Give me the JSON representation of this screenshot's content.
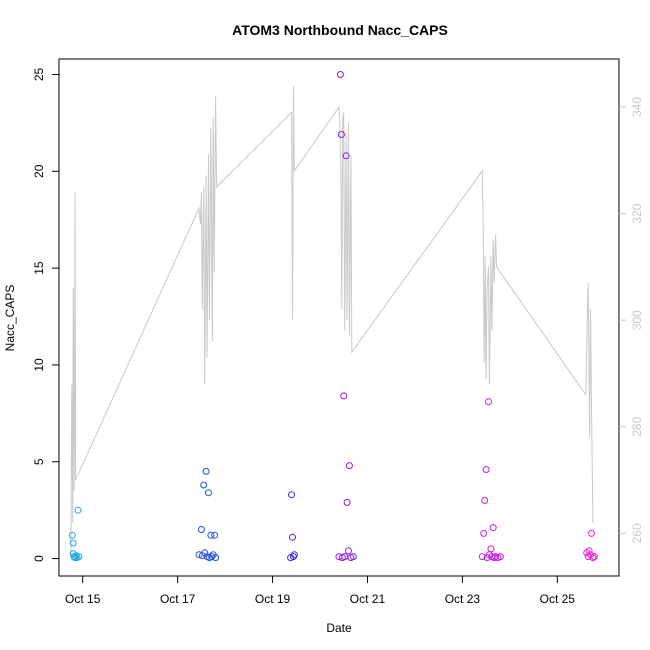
{
  "chart_data": {
    "type": "scatter",
    "title": "ATOM3 Northbound Nacc_CAPS",
    "xlabel": "Date",
    "ylabel": "Nacc_CAPS",
    "xlim": [
      14.5,
      26.3
    ],
    "ylim": [
      -0.9,
      25.8
    ],
    "x_ticks": [
      {
        "value": 15,
        "label": "Oct 15"
      },
      {
        "value": 17,
        "label": "Oct 17"
      },
      {
        "value": 19,
        "label": "Oct 19"
      },
      {
        "value": 21,
        "label": "Oct 21"
      },
      {
        "value": 23,
        "label": "Oct 23"
      },
      {
        "value": 25,
        "label": "Oct 25"
      }
    ],
    "y_ticks": [
      0,
      5,
      10,
      15,
      20,
      25
    ],
    "right_axis": {
      "ylim": [
        252,
        349
      ],
      "ticks": [
        260,
        280,
        300,
        320,
        340
      ],
      "color": "#c8c8c8"
    },
    "line_series": {
      "color": "#c8c8c8",
      "axis": "right",
      "points": [
        [
          14.75,
          255
        ],
        [
          14.77,
          288
        ],
        [
          14.79,
          262
        ],
        [
          14.8,
          306
        ],
        [
          14.82,
          268
        ],
        [
          14.84,
          324
        ],
        [
          14.85,
          270
        ],
        [
          17.45,
          321
        ],
        [
          17.48,
          318
        ],
        [
          17.5,
          324
        ],
        [
          17.52,
          302
        ],
        [
          17.55,
          325
        ],
        [
          17.57,
          288
        ],
        [
          17.6,
          327
        ],
        [
          17.62,
          293
        ],
        [
          17.65,
          331
        ],
        [
          17.67,
          300
        ],
        [
          17.7,
          336
        ],
        [
          17.73,
          296
        ],
        [
          17.75,
          338
        ],
        [
          17.77,
          309
        ],
        [
          17.8,
          342
        ],
        [
          17.82,
          325
        ],
        [
          19.4,
          339
        ],
        [
          19.42,
          300
        ],
        [
          19.44,
          344
        ],
        [
          19.46,
          328
        ],
        [
          20.4,
          340
        ],
        [
          20.42,
          336
        ],
        [
          20.44,
          329
        ],
        [
          20.46,
          302
        ],
        [
          20.48,
          338
        ],
        [
          20.5,
          339
        ],
        [
          20.52,
          298
        ],
        [
          20.55,
          335
        ],
        [
          20.57,
          300
        ],
        [
          20.6,
          337
        ],
        [
          20.62,
          297
        ],
        [
          20.65,
          331
        ],
        [
          20.67,
          294
        ],
        [
          23.42,
          328
        ],
        [
          23.44,
          316
        ],
        [
          23.46,
          292
        ],
        [
          23.48,
          312
        ],
        [
          23.5,
          289
        ],
        [
          23.52,
          306
        ],
        [
          23.55,
          310
        ],
        [
          23.57,
          288
        ],
        [
          23.6,
          312
        ],
        [
          23.62,
          298
        ],
        [
          23.65,
          315
        ],
        [
          23.67,
          307
        ],
        [
          23.7,
          316
        ],
        [
          23.72,
          310
        ],
        [
          25.6,
          286
        ],
        [
          25.63,
          300
        ],
        [
          25.65,
          307
        ],
        [
          25.68,
          278
        ],
        [
          25.7,
          302
        ],
        [
          25.72,
          284
        ],
        [
          25.75,
          262
        ]
      ]
    },
    "point_series": [
      {
        "color": "#1fa8e0",
        "points": [
          [
            14.78,
            1.2
          ],
          [
            14.8,
            0.8
          ],
          [
            14.8,
            0.25
          ],
          [
            14.82,
            0.1
          ],
          [
            14.84,
            0.05
          ],
          [
            14.86,
            0.15
          ],
          [
            14.88,
            0.05
          ],
          [
            14.9,
            2.5
          ],
          [
            14.92,
            0.1
          ]
        ]
      },
      {
        "color": "#1f4fe0",
        "points": [
          [
            17.45,
            0.2
          ],
          [
            17.5,
            1.5
          ],
          [
            17.52,
            0.15
          ],
          [
            17.55,
            3.8
          ],
          [
            17.57,
            0.3
          ],
          [
            17.6,
            4.5
          ],
          [
            17.62,
            0.1
          ],
          [
            17.65,
            3.4
          ],
          [
            17.67,
            0.05
          ],
          [
            17.7,
            1.2
          ],
          [
            17.72,
            0.1
          ],
          [
            17.75,
            0.2
          ],
          [
            17.78,
            1.2
          ],
          [
            17.8,
            0.05
          ]
        ]
      },
      {
        "color": "#3a2ad8",
        "points": [
          [
            19.38,
            0.05
          ],
          [
            19.4,
            3.3
          ],
          [
            19.42,
            1.1
          ],
          [
            19.44,
            0.1
          ],
          [
            19.46,
            0.2
          ]
        ]
      },
      {
        "color": "#8a1ae8",
        "points": [
          [
            20.4,
            0.1
          ],
          [
            20.43,
            25.0
          ],
          [
            20.45,
            21.9
          ],
          [
            20.47,
            0.05
          ],
          [
            20.5,
            8.4
          ],
          [
            20.52,
            0.1
          ],
          [
            20.55,
            20.8
          ],
          [
            20.57,
            2.9
          ],
          [
            20.6,
            0.4
          ],
          [
            20.62,
            4.8
          ],
          [
            20.65,
            0.05
          ],
          [
            20.7,
            0.1
          ]
        ]
      },
      {
        "color": "#c21fe0",
        "points": [
          [
            23.42,
            0.1
          ],
          [
            23.45,
            1.3
          ],
          [
            23.47,
            3.0
          ],
          [
            23.5,
            4.6
          ],
          [
            23.52,
            0.05
          ],
          [
            23.55,
            8.1
          ],
          [
            23.57,
            0.2
          ],
          [
            23.6,
            0.5
          ],
          [
            23.62,
            0.1
          ],
          [
            23.65,
            1.6
          ],
          [
            23.67,
            0.05
          ],
          [
            23.7,
            0.1
          ],
          [
            23.75,
            0.05
          ],
          [
            23.8,
            0.1
          ]
        ]
      },
      {
        "color": "#ee1ed6",
        "points": [
          [
            25.62,
            0.3
          ],
          [
            25.65,
            0.1
          ],
          [
            25.67,
            0.4
          ],
          [
            25.7,
            0.2
          ],
          [
            25.72,
            1.3
          ],
          [
            25.75,
            0.05
          ],
          [
            25.78,
            0.1
          ]
        ]
      }
    ]
  }
}
